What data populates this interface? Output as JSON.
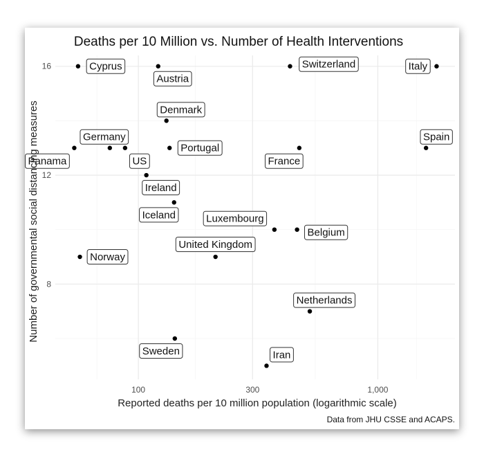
{
  "chart_data": {
    "type": "scatter",
    "title": "Deaths per 10 Million vs. Number of Health Interventions",
    "xlabel": "Reported deaths per 10 million population (logarithmic scale)",
    "ylabel": "Number of governmental social distancing measures",
    "caption": "Data from JHU CSSE and ACAPS.",
    "x_scale": "log",
    "xlim": [
      45,
      2100
    ],
    "ylim": [
      4.5,
      16.4
    ],
    "x_ticks": [
      100,
      300,
      1000
    ],
    "x_tick_labels": [
      "100",
      "300",
      "1,000"
    ],
    "y_ticks": [
      8,
      12,
      16
    ],
    "y_tick_labels": [
      "8",
      "12",
      "16"
    ],
    "grid": true,
    "points": [
      {
        "label": "Cyprus",
        "x": 56,
        "y": 16
      },
      {
        "label": "Austria",
        "x": 121,
        "y": 16
      },
      {
        "label": "Switzerland",
        "x": 430,
        "y": 16
      },
      {
        "label": "Italy",
        "x": 1760,
        "y": 16
      },
      {
        "label": "Denmark",
        "x": 131,
        "y": 14
      },
      {
        "label": "Germany",
        "x": 76,
        "y": 13
      },
      {
        "label": "Panama",
        "x": 54,
        "y": 13
      },
      {
        "label": "US",
        "x": 88,
        "y": 13
      },
      {
        "label": "Portugal",
        "x": 135,
        "y": 13
      },
      {
        "label": "France",
        "x": 470,
        "y": 13
      },
      {
        "label": "Spain",
        "x": 1590,
        "y": 13
      },
      {
        "label": "Ireland",
        "x": 108,
        "y": 12
      },
      {
        "label": "Iceland",
        "x": 141,
        "y": 11
      },
      {
        "label": "Luxembourg",
        "x": 370,
        "y": 10
      },
      {
        "label": "Belgium",
        "x": 460,
        "y": 10
      },
      {
        "label": "United Kingdom",
        "x": 210,
        "y": 9
      },
      {
        "label": "Norway",
        "x": 57,
        "y": 9
      },
      {
        "label": "Netherlands",
        "x": 520,
        "y": 7
      },
      {
        "label": "Sweden",
        "x": 142,
        "y": 6
      },
      {
        "label": "Iran",
        "x": 343,
        "y": 5
      }
    ]
  }
}
